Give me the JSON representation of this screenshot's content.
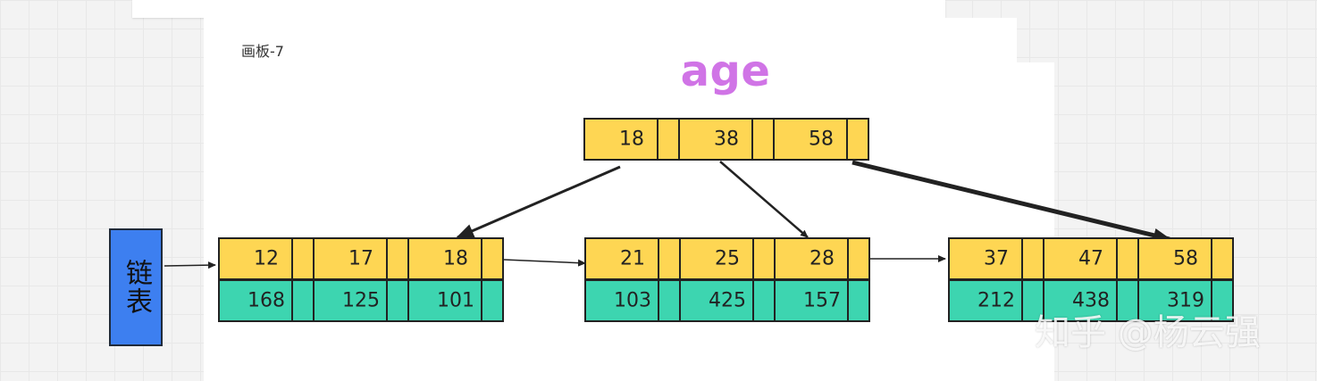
{
  "board_label": "画板-7",
  "title": "age",
  "list_label": "链表",
  "watermark": "知乎 @杨云强",
  "colors": {
    "key_fill": "#fed653",
    "value_fill": "#3dd5b0",
    "list_fill": "#3d7ff0",
    "title": "#d074e6",
    "stroke": "#222222"
  },
  "root": {
    "keys": [
      "18",
      "38",
      "58"
    ]
  },
  "leaves": [
    {
      "keys": [
        "12",
        "17",
        "18"
      ],
      "values": [
        "168",
        "125",
        "101"
      ]
    },
    {
      "keys": [
        "21",
        "25",
        "28"
      ],
      "values": [
        "103",
        "425",
        "157"
      ]
    },
    {
      "keys": [
        "37",
        "47",
        "58"
      ],
      "values": [
        "212",
        "438",
        "319"
      ]
    }
  ]
}
